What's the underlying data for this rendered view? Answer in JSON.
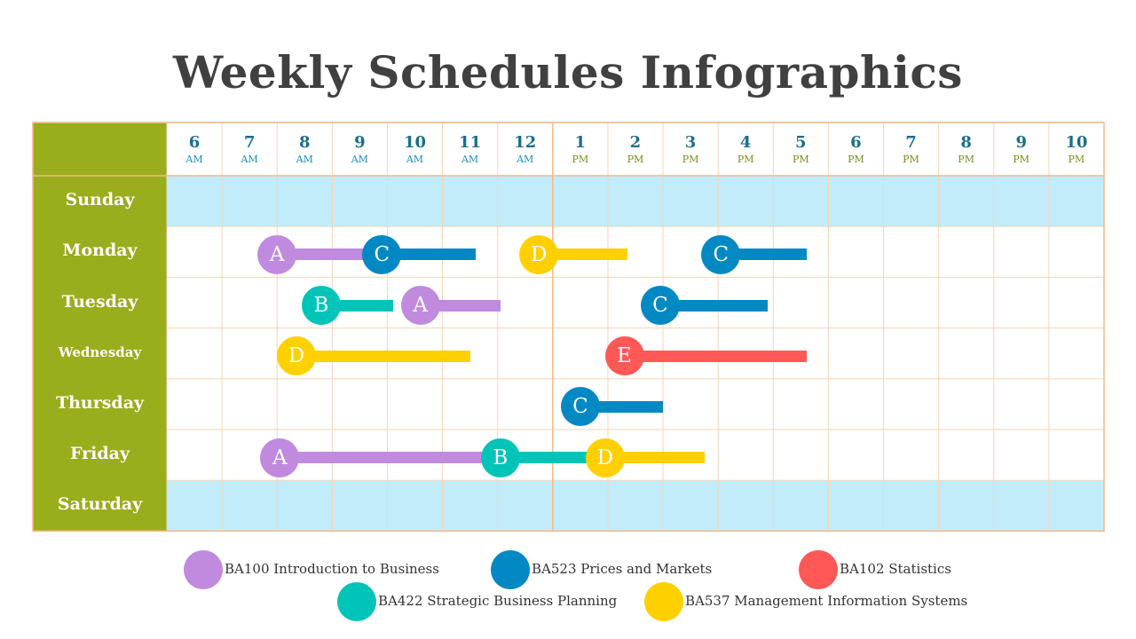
{
  "title": "Weekly Schedules Infographics",
  "colors": {
    "header_green": "#9aad1c",
    "weekend_blue": "#c2ecfa",
    "grid_line": "#f5d5b4",
    "noon_line": "#f2b98a",
    "course_A": "#c08ade",
    "course_B": "#00c4b7",
    "course_C": "#0289c4",
    "course_D": "#ffd000",
    "course_E": "#ff5857"
  },
  "hours": [
    {
      "num": "6",
      "ampm": "AM"
    },
    {
      "num": "7",
      "ampm": "AM"
    },
    {
      "num": "8",
      "ampm": "AM"
    },
    {
      "num": "9",
      "ampm": "AM"
    },
    {
      "num": "10",
      "ampm": "AM"
    },
    {
      "num": "11",
      "ampm": "AM"
    },
    {
      "num": "12",
      "ampm": "AM"
    },
    {
      "num": "1",
      "ampm": "PM"
    },
    {
      "num": "2",
      "ampm": "PM"
    },
    {
      "num": "3",
      "ampm": "PM"
    },
    {
      "num": "4",
      "ampm": "PM"
    },
    {
      "num": "5",
      "ampm": "PM"
    },
    {
      "num": "6",
      "ampm": "PM"
    },
    {
      "num": "7",
      "ampm": "PM"
    },
    {
      "num": "8",
      "ampm": "PM"
    },
    {
      "num": "9",
      "ampm": "PM"
    },
    {
      "num": "10",
      "ampm": "PM"
    }
  ],
  "days": [
    {
      "name": "Sunday",
      "weekend": true
    },
    {
      "name": "Monday",
      "weekend": false
    },
    {
      "name": "Tuesday",
      "weekend": false
    },
    {
      "name": "Wednesday",
      "weekend": false
    },
    {
      "name": "Thursday",
      "weekend": false
    },
    {
      "name": "Friday",
      "weekend": false
    },
    {
      "name": "Saturday",
      "weekend": true
    }
  ],
  "sessions": [
    {
      "day": 1,
      "course": "A",
      "start_hour": 8.0,
      "end_hour": 9.8
    },
    {
      "day": 1,
      "course": "C",
      "start_hour": 9.9,
      "end_hour": 11.6
    },
    {
      "day": 1,
      "course": "D",
      "start_hour": 12.75,
      "end_hour": 14.35
    },
    {
      "day": 1,
      "course": "C",
      "start_hour": 16.05,
      "end_hour": 17.6
    },
    {
      "day": 2,
      "course": "B",
      "start_hour": 8.8,
      "end_hour": 10.1
    },
    {
      "day": 2,
      "course": "A",
      "start_hour": 10.6,
      "end_hour": 12.05
    },
    {
      "day": 2,
      "course": "C",
      "start_hour": 14.95,
      "end_hour": 16.9
    },
    {
      "day": 3,
      "course": "D",
      "start_hour": 8.35,
      "end_hour": 11.5
    },
    {
      "day": 3,
      "course": "E",
      "start_hour": 14.3,
      "end_hour": 17.6
    },
    {
      "day": 4,
      "course": "C",
      "start_hour": 13.5,
      "end_hour": 15.0
    },
    {
      "day": 5,
      "course": "A",
      "start_hour": 8.05,
      "end_hour": 11.75
    },
    {
      "day": 5,
      "course": "B",
      "start_hour": 12.05,
      "end_hour": 13.9
    },
    {
      "day": 5,
      "course": "D",
      "start_hour": 13.95,
      "end_hour": 15.75
    }
  ],
  "legend": [
    {
      "course": "A",
      "label": "BA100  Introduction to Business"
    },
    {
      "course": "C",
      "label": "BA523 Prices and Markets"
    },
    {
      "course": "E",
      "label": "BA102 Statistics"
    },
    {
      "course": "B",
      "label": "BA422 Strategic Business Planning"
    },
    {
      "course": "D",
      "label": "BA537 Management Information Systems"
    }
  ]
}
